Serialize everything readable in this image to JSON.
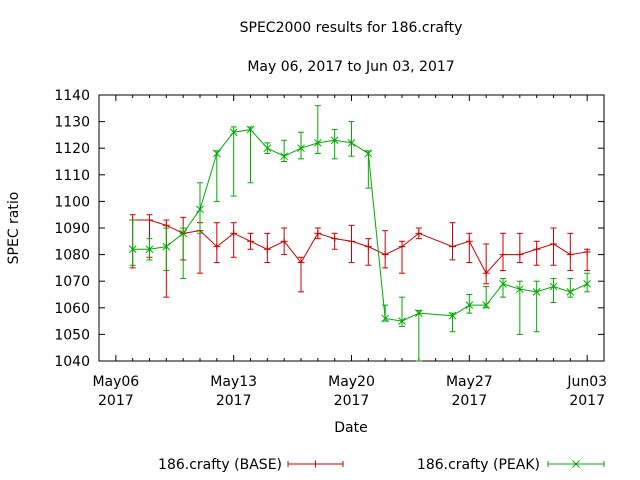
{
  "chart_data": {
    "type": "line",
    "title": "SPEC2000 results for 186.crafty",
    "subtitle": "May 06, 2017 to Jun 03, 2017",
    "xlabel": "Date",
    "ylabel": "SPEC ratio",
    "xlim": [
      "2017-05-05",
      "2017-06-04"
    ],
    "ylim": [
      1040,
      1140
    ],
    "yticks": [
      1040,
      1050,
      1060,
      1070,
      1080,
      1090,
      1100,
      1110,
      1120,
      1130,
      1140
    ],
    "xticks": [
      {
        "date": "2017-05-06",
        "line1": "May06",
        "line2": "2017"
      },
      {
        "date": "2017-05-13",
        "line1": "May13",
        "line2": "2017"
      },
      {
        "date": "2017-05-20",
        "line1": "May20",
        "line2": "2017"
      },
      {
        "date": "2017-05-27",
        "line1": "May27",
        "line2": "2017"
      },
      {
        "date": "2017-06-03",
        "line1": "Jun03",
        "line2": "2017"
      }
    ],
    "grid": false,
    "legend_position": "bottom",
    "series": [
      {
        "name": "186.crafty (BASE)",
        "color": "#cc0000",
        "marker": "plus",
        "points": [
          {
            "x": "2017-05-07",
            "y": 1093,
            "lo": 1075,
            "hi": 1095
          },
          {
            "x": "2017-05-08",
            "y": 1093,
            "lo": 1079,
            "hi": 1095
          },
          {
            "x": "2017-05-09",
            "y": 1091,
            "lo": 1064,
            "hi": 1093
          },
          {
            "x": "2017-05-10",
            "y": 1088,
            "lo": 1078,
            "hi": 1094
          },
          {
            "x": "2017-05-11",
            "y": 1089,
            "lo": 1073,
            "hi": 1092
          },
          {
            "x": "2017-05-12",
            "y": 1083,
            "lo": 1077,
            "hi": 1092
          },
          {
            "x": "2017-05-13",
            "y": 1088,
            "lo": 1079,
            "hi": 1092
          },
          {
            "x": "2017-05-14",
            "y": 1085,
            "lo": 1082,
            "hi": 1088
          },
          {
            "x": "2017-05-15",
            "y": 1082,
            "lo": 1077,
            "hi": 1088
          },
          {
            "x": "2017-05-16",
            "y": 1085,
            "lo": 1080,
            "hi": 1090
          },
          {
            "x": "2017-05-17",
            "y": 1077,
            "lo": 1066,
            "hi": 1079
          },
          {
            "x": "2017-05-18",
            "y": 1088,
            "lo": 1086,
            "hi": 1090
          },
          {
            "x": "2017-05-19",
            "y": 1086,
            "lo": 1082,
            "hi": 1088
          },
          {
            "x": "2017-05-20",
            "y": 1085,
            "lo": 1077,
            "hi": 1091
          },
          {
            "x": "2017-05-21",
            "y": 1083,
            "lo": 1076,
            "hi": 1086
          },
          {
            "x": "2017-05-22",
            "y": 1080,
            "lo": 1075,
            "hi": 1089
          },
          {
            "x": "2017-05-23",
            "y": 1083,
            "lo": 1073,
            "hi": 1085
          },
          {
            "x": "2017-05-24",
            "y": 1088,
            "lo": 1086,
            "hi": 1090
          },
          {
            "x": "2017-05-26",
            "y": 1083,
            "lo": 1078,
            "hi": 1092
          },
          {
            "x": "2017-05-27",
            "y": 1085,
            "lo": 1077,
            "hi": 1088
          },
          {
            "x": "2017-05-28",
            "y": 1073,
            "lo": 1069,
            "hi": 1084
          },
          {
            "x": "2017-05-29",
            "y": 1080,
            "lo": 1074,
            "hi": 1088
          },
          {
            "x": "2017-05-30",
            "y": 1080,
            "lo": 1077,
            "hi": 1088
          },
          {
            "x": "2017-05-31",
            "y": 1082,
            "lo": 1076,
            "hi": 1085
          },
          {
            "x": "2017-06-01",
            "y": 1084,
            "lo": 1076,
            "hi": 1090
          },
          {
            "x": "2017-06-02",
            "y": 1080,
            "lo": 1074,
            "hi": 1088
          },
          {
            "x": "2017-06-03",
            "y": 1081,
            "lo": 1074,
            "hi": 1082
          }
        ]
      },
      {
        "name": "186.crafty (PEAK)",
        "color": "#00aa00",
        "marker": "cross",
        "points": [
          {
            "x": "2017-05-07",
            "y": 1082,
            "lo": 1076,
            "hi": 1093
          },
          {
            "x": "2017-05-08",
            "y": 1082,
            "lo": 1078,
            "hi": 1086
          },
          {
            "x": "2017-05-09",
            "y": 1083,
            "lo": 1074,
            "hi": 1090
          },
          {
            "x": "2017-05-10",
            "y": 1088,
            "lo": 1071,
            "hi": 1090
          },
          {
            "x": "2017-05-11",
            "y": 1097,
            "lo": 1088,
            "hi": 1107
          },
          {
            "x": "2017-05-12",
            "y": 1118,
            "lo": 1100,
            "hi": 1119
          },
          {
            "x": "2017-05-13",
            "y": 1126,
            "lo": 1102,
            "hi": 1128
          },
          {
            "x": "2017-05-14",
            "y": 1127,
            "lo": 1107,
            "hi": 1128
          },
          {
            "x": "2017-05-15",
            "y": 1120,
            "lo": 1118,
            "hi": 1122
          },
          {
            "x": "2017-05-16",
            "y": 1117,
            "lo": 1115,
            "hi": 1123
          },
          {
            "x": "2017-05-17",
            "y": 1120,
            "lo": 1116,
            "hi": 1126
          },
          {
            "x": "2017-05-18",
            "y": 1122,
            "lo": 1118,
            "hi": 1136
          },
          {
            "x": "2017-05-19",
            "y": 1123,
            "lo": 1116,
            "hi": 1127
          },
          {
            "x": "2017-05-20",
            "y": 1122,
            "lo": 1117,
            "hi": 1130
          },
          {
            "x": "2017-05-21",
            "y": 1118,
            "lo": 1105,
            "hi": 1119
          },
          {
            "x": "2017-05-22",
            "y": 1056,
            "lo": 1055,
            "hi": 1061
          },
          {
            "x": "2017-05-23",
            "y": 1055,
            "lo": 1053,
            "hi": 1064
          },
          {
            "x": "2017-05-24",
            "y": 1058,
            "lo": 1040,
            "hi": 1059
          },
          {
            "x": "2017-05-26",
            "y": 1057,
            "lo": 1051,
            "hi": 1058
          },
          {
            "x": "2017-05-27",
            "y": 1061,
            "lo": 1058,
            "hi": 1065
          },
          {
            "x": "2017-05-28",
            "y": 1061,
            "lo": 1060,
            "hi": 1068
          },
          {
            "x": "2017-05-29",
            "y": 1069,
            "lo": 1064,
            "hi": 1071
          },
          {
            "x": "2017-05-30",
            "y": 1067,
            "lo": 1050,
            "hi": 1070
          },
          {
            "x": "2017-05-31",
            "y": 1066,
            "lo": 1051,
            "hi": 1070
          },
          {
            "x": "2017-06-01",
            "y": 1068,
            "lo": 1062,
            "hi": 1071
          },
          {
            "x": "2017-06-02",
            "y": 1066,
            "lo": 1064,
            "hi": 1071
          },
          {
            "x": "2017-06-03",
            "y": 1069,
            "lo": 1066,
            "hi": 1073
          }
        ]
      }
    ]
  }
}
